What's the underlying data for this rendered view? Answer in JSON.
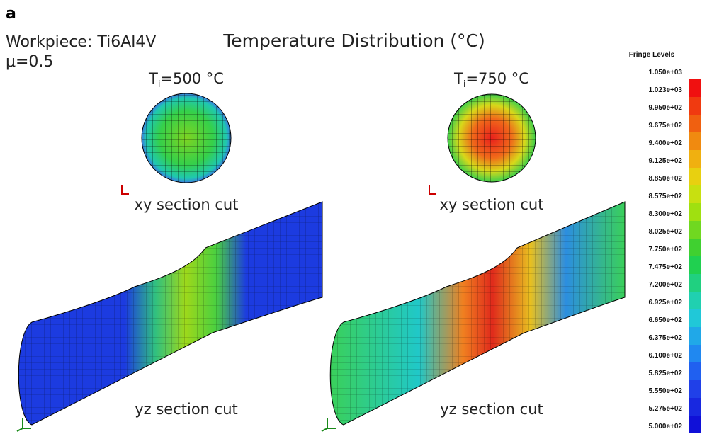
{
  "panel_label": "a",
  "workpiece": "Workpiece: Ti6Al4V",
  "friction": "μ=0.5",
  "title": "Temperature Distribution (°C)",
  "left": {
    "temp": {
      "symbol": "T",
      "subscript": "i",
      "rest": "=500 °C"
    },
    "xy_label": "xy section cut",
    "yz_label": "yz section cut"
  },
  "right": {
    "temp": {
      "symbol": "T",
      "subscript": "i",
      "rest": "=750 °C"
    },
    "xy_label": "xy section cut",
    "yz_label": "yz section cut"
  },
  "legend": {
    "title": "Fringe Levels",
    "levels": [
      "1.050e+03",
      "1.023e+03",
      "9.950e+02",
      "9.675e+02",
      "9.400e+02",
      "9.125e+02",
      "8.850e+02",
      "8.575e+02",
      "8.300e+02",
      "8.025e+02",
      "7.750e+02",
      "7.475e+02",
      "7.200e+02",
      "6.925e+02",
      "6.650e+02",
      "6.375e+02",
      "6.100e+02",
      "5.825e+02",
      "5.550e+02",
      "5.275e+02",
      "5.000e+02"
    ]
  }
}
